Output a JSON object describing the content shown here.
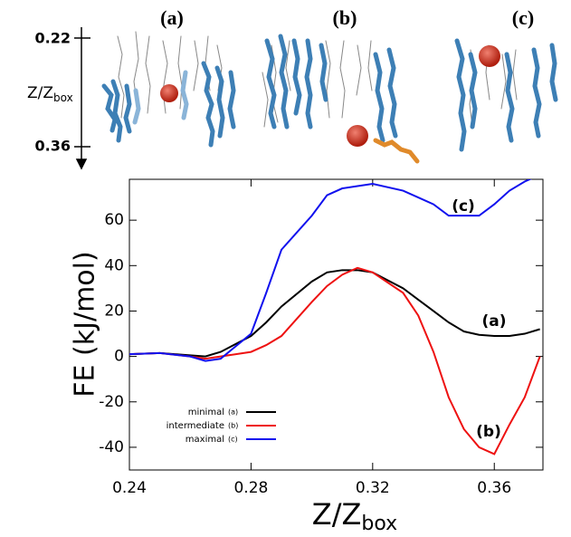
{
  "panel": {
    "labels": [
      "(a)",
      "(b)",
      "(c)"
    ],
    "axis_ticks": [
      "0.22",
      "0.36"
    ],
    "axis_label": "Z/Z",
    "axis_label_sub": "box"
  },
  "chart_data": {
    "type": "line",
    "y_label": "FE (kJ/mol)",
    "x_label": "Z/Z",
    "x_label_sub": "box",
    "x": [
      0.24,
      0.25,
      0.26,
      0.265,
      0.27,
      0.28,
      0.285,
      0.29,
      0.3,
      0.305,
      0.31,
      0.315,
      0.32,
      0.33,
      0.335,
      0.34,
      0.345,
      0.35,
      0.355,
      0.36,
      0.365,
      0.37,
      0.375
    ],
    "series": [
      {
        "name": "minimal",
        "tag": "(a)",
        "color": "#000000",
        "values": [
          1,
          1.5,
          0.5,
          0,
          2,
          9,
          15,
          22,
          33,
          37,
          38,
          38,
          37,
          30,
          25,
          20,
          15,
          11,
          9.5,
          9,
          9,
          10,
          12
        ]
      },
      {
        "name": "intermediate",
        "tag": "(b)",
        "color": "#ee1111",
        "values": [
          1,
          1.5,
          0,
          -1,
          0,
          2,
          5,
          9,
          24,
          31,
          36,
          39,
          37,
          28,
          18,
          2,
          -18,
          -32,
          -40,
          -43,
          -30,
          -18,
          0
        ]
      },
      {
        "name": "maximal",
        "tag": "(c)",
        "color": "#1111ee",
        "values": [
          1,
          1.5,
          0,
          -2,
          -1,
          10,
          28,
          47,
          62,
          71,
          74,
          75,
          76,
          73,
          70,
          67,
          62,
          62,
          62,
          67,
          73,
          77,
          80
        ]
      }
    ],
    "annotations": [
      "(c)",
      "(a)",
      "(b)"
    ],
    "xlim": [
      0.24,
      0.376
    ],
    "ylim": [
      -50,
      78
    ],
    "xticks": [
      0.24,
      0.28,
      0.32,
      0.36
    ],
    "yticks": [
      -40,
      -20,
      0,
      20,
      40,
      60
    ]
  }
}
